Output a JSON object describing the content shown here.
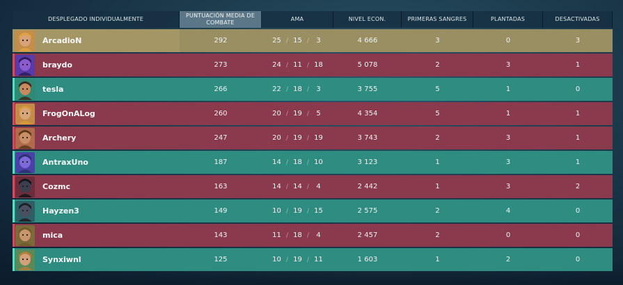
{
  "headers": {
    "player": "DESPLEGADO INDIVIDUALMENTE",
    "acs": "PUNTUACIÓN MEDIA DE COMBATE",
    "kda": "AMA",
    "econ": "NIVEL ECON.",
    "first_bloods": "PRIMERAS SANGRES",
    "plants": "PLANTADAS",
    "defuses": "DESACTIVADAS"
  },
  "separator": "/",
  "colors": {
    "gold_row": "#9a8f63",
    "red_row": "#8a3a4c",
    "teal_row": "#2f8c80",
    "header_highlight": "#5b7787"
  },
  "players": [
    {
      "name": "ArcadioN",
      "team": "gold",
      "agent_icon": "agent-portrait-icon",
      "acs": "292",
      "k": "25",
      "d": "15",
      "a": "3",
      "econ": "4 666",
      "fb": "3",
      "plants": "0",
      "defuses": "3"
    },
    {
      "name": "braydo",
      "team": "red",
      "agent_icon": "agent-portrait-icon",
      "acs": "273",
      "k": "24",
      "d": "11",
      "a": "18",
      "econ": "5 078",
      "fb": "2",
      "plants": "3",
      "defuses": "1"
    },
    {
      "name": "tesla",
      "team": "teal",
      "agent_icon": "agent-portrait-icon",
      "acs": "266",
      "k": "22",
      "d": "18",
      "a": "3",
      "econ": "3 755",
      "fb": "5",
      "plants": "1",
      "defuses": "0"
    },
    {
      "name": "FrogOnALog",
      "team": "red",
      "agent_icon": "agent-portrait-icon",
      "acs": "260",
      "k": "20",
      "d": "19",
      "a": "5",
      "econ": "4 354",
      "fb": "5",
      "plants": "1",
      "defuses": "1"
    },
    {
      "name": "Archery",
      "team": "red",
      "agent_icon": "agent-portrait-icon",
      "acs": "247",
      "k": "20",
      "d": "19",
      "a": "19",
      "econ": "3 743",
      "fb": "2",
      "plants": "3",
      "defuses": "1"
    },
    {
      "name": "AntraxUno",
      "team": "teal",
      "agent_icon": "agent-portrait-icon",
      "acs": "187",
      "k": "14",
      "d": "18",
      "a": "10",
      "econ": "3 123",
      "fb": "1",
      "plants": "3",
      "defuses": "1"
    },
    {
      "name": "Cozmc",
      "team": "red",
      "agent_icon": "agent-portrait-icon",
      "acs": "163",
      "k": "14",
      "d": "14",
      "a": "4",
      "econ": "2 442",
      "fb": "1",
      "plants": "3",
      "defuses": "2"
    },
    {
      "name": "Hayzen3",
      "team": "teal",
      "agent_icon": "agent-portrait-icon",
      "acs": "149",
      "k": "10",
      "d": "19",
      "a": "15",
      "econ": "2 575",
      "fb": "2",
      "plants": "4",
      "defuses": "0"
    },
    {
      "name": "mica",
      "team": "red",
      "agent_icon": "agent-portrait-icon",
      "acs": "143",
      "k": "11",
      "d": "18",
      "a": "4",
      "econ": "2 457",
      "fb": "2",
      "plants": "0",
      "defuses": "0"
    },
    {
      "name": "Synxiwnl",
      "team": "teal",
      "agent_icon": "agent-portrait-icon",
      "acs": "125",
      "k": "10",
      "d": "19",
      "a": "11",
      "econ": "1 603",
      "fb": "1",
      "plants": "2",
      "defuses": "0"
    }
  ]
}
